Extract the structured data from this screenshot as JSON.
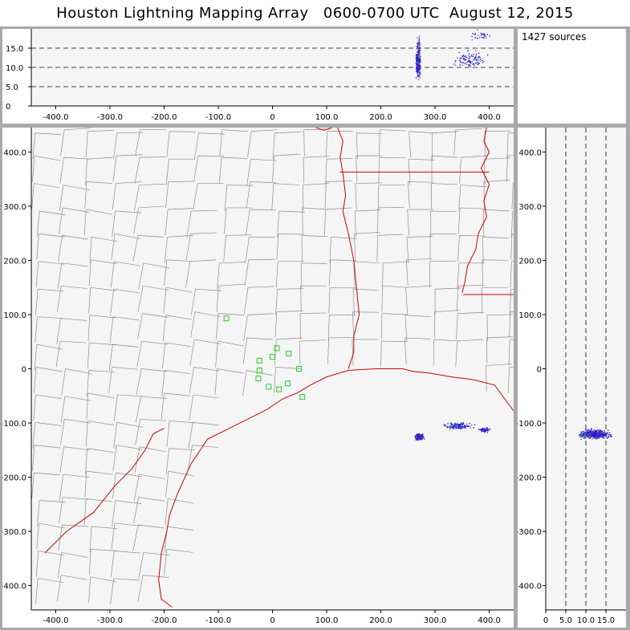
{
  "title": "Houston Lightning Mapping Array   0600-0700 UTC  August 12, 2015",
  "source_count": "1427 sources",
  "colors": {
    "background": "#f5f5f5",
    "county_lines": "#8c8c8c",
    "state_and_coast": "#cc0000",
    "stations": "#22cc22",
    "sources_low": "#3300cc",
    "sources_high": "#00cc88"
  },
  "chart_data": [
    {
      "panel": "plan-view",
      "type": "scatter",
      "xlim": [
        -445,
        445
      ],
      "ylim": [
        -445,
        445
      ],
      "x_ticks": [
        "-400.0",
        "-300.0",
        "-200.0",
        "-100.0",
        "0",
        "100.0",
        "200.0",
        "300.0",
        "400.0"
      ],
      "y_ticks": [
        "400.0",
        "300.0",
        "200.0",
        "100.0",
        "0",
        "-100.0",
        "-200.0",
        "-300.0",
        "-400.0"
      ],
      "stations": [
        {
          "x": -85,
          "y": 93
        },
        {
          "x": -24,
          "y": 15
        },
        {
          "x": -24,
          "y": -3
        },
        {
          "x": -26,
          "y": -18
        },
        {
          "x": -7,
          "y": -33
        },
        {
          "x": 0,
          "y": 22
        },
        {
          "x": 8,
          "y": 38
        },
        {
          "x": 30,
          "y": 28
        },
        {
          "x": 49,
          "y": 0
        },
        {
          "x": 28,
          "y": -27
        },
        {
          "x": 12,
          "y": -38
        },
        {
          "x": 55,
          "y": -52
        }
      ],
      "source_clusters": [
        {
          "x": 270,
          "y": -125,
          "spread_x": 8,
          "spread_y": 6,
          "count": 320
        },
        {
          "x": 340,
          "y": -105,
          "spread_x": 28,
          "spread_y": 7,
          "count": 160
        },
        {
          "x": 390,
          "y": -112,
          "spread_x": 12,
          "spread_y": 5,
          "count": 60
        }
      ]
    },
    {
      "panel": "east-west-altitude",
      "type": "scatter",
      "xlim": [
        -445,
        445
      ],
      "ylim": [
        0,
        20
      ],
      "x_ticks": [
        "-400.0",
        "-300.0",
        "-200.0",
        "-100.0",
        "0",
        "100.0",
        "200.0",
        "300.0",
        "400.0"
      ],
      "y_ticks": [
        "15.0",
        "10.0",
        "5.0",
        "0"
      ],
      "gridlines": [
        5,
        10,
        15
      ],
      "source_clusters": [
        {
          "x": 268,
          "z": 11,
          "spread_x": 5,
          "spread_z": 4,
          "count": 260
        },
        {
          "x": 268,
          "z": 16,
          "spread_x": 4,
          "spread_z": 2,
          "count": 40
        },
        {
          "x": 365,
          "z": 12,
          "spread_x": 30,
          "spread_z": 2.5,
          "count": 110
        },
        {
          "x": 382,
          "z": 18.5,
          "spread_x": 18,
          "spread_z": 1.5,
          "count": 30
        }
      ]
    },
    {
      "panel": "altitude-north-south",
      "type": "scatter",
      "xlim": [
        0,
        20
      ],
      "ylim": [
        -445,
        445
      ],
      "x_ticks": [
        "0",
        "5.0",
        "10.0",
        "15.0"
      ],
      "gridlines": [
        5,
        10,
        15
      ],
      "source_clusters": [
        {
          "z": 12,
          "y": -120,
          "spread_z": 4,
          "spread_y": 10,
          "count": 420
        }
      ]
    }
  ]
}
